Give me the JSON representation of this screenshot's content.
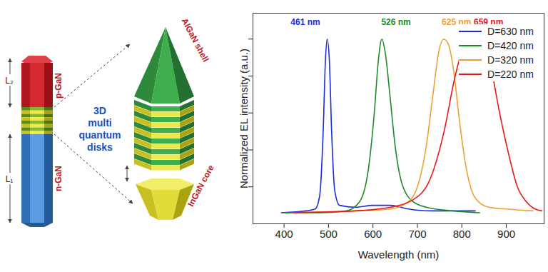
{
  "chart_data": {
    "type": "line",
    "x_label": "Wavelength (nm)",
    "y_label": "Normalized EL intensity (a.u.)",
    "xlim": [
      330,
      985
    ],
    "xticks": [
      400,
      500,
      600,
      700,
      800,
      900
    ],
    "ylim": [
      0,
      1.14
    ],
    "yticks": [
      0.2,
      0.4,
      0.6,
      0.8,
      1.0
    ],
    "tick_labels": "x",
    "legend": "top-right",
    "series": [
      {
        "name": "D=630 nm",
        "color": "#1a2be0",
        "x": [
          394,
          450,
          470,
          480,
          488,
          493,
          497,
          502,
          507,
          514,
          525,
          560,
          600,
          640,
          680,
          730,
          780,
          830
        ],
        "values": [
          0.06,
          0.07,
          0.08,
          0.15,
          0.5,
          0.88,
          1.0,
          0.88,
          0.5,
          0.18,
          0.1,
          0.09,
          0.1,
          0.1,
          0.08,
          0.07,
          0.07,
          0.07
        ]
      },
      {
        "name": "D=420 nm",
        "color": "#1e8a2a",
        "x": [
          400,
          480,
          540,
          570,
          590,
          603,
          612,
          620,
          628,
          638,
          650,
          665,
          690,
          720,
          780,
          840
        ],
        "values": [
          0.06,
          0.06,
          0.07,
          0.12,
          0.3,
          0.6,
          0.88,
          1.0,
          0.92,
          0.7,
          0.42,
          0.22,
          0.12,
          0.09,
          0.07,
          0.06
        ]
      },
      {
        "name": "D=320 nm",
        "color": "#f0a030",
        "x": [
          420,
          560,
          640,
          680,
          700,
          720,
          735,
          748,
          759,
          770,
          782,
          795,
          810,
          830,
          860,
          900,
          960
        ],
        "values": [
          0.06,
          0.07,
          0.08,
          0.12,
          0.2,
          0.42,
          0.7,
          0.93,
          1.0,
          0.97,
          0.82,
          0.55,
          0.3,
          0.14,
          0.09,
          0.08,
          0.07
        ]
      },
      {
        "name": "D=220 nm",
        "color": "#e8191c",
        "x": [
          420,
          560,
          640,
          690,
          730,
          760,
          785,
          805,
          828,
          848,
          865,
          885,
          905,
          925,
          945,
          965,
          980
        ],
        "values": [
          0.06,
          0.07,
          0.09,
          0.13,
          0.25,
          0.5,
          0.8,
          0.96,
          1.0,
          0.98,
          0.85,
          0.6,
          0.38,
          0.2,
          0.12,
          0.08,
          0.07
        ]
      }
    ],
    "annotations": [
      {
        "text": "461 nm",
        "x": 448,
        "y": 1.09,
        "color": "#1a2be0"
      },
      {
        "text": "526 nm",
        "x": 652,
        "y": 1.09,
        "color": "#1e8a2a"
      },
      {
        "text": "625 nm",
        "x": 788,
        "y": 1.09,
        "color": "#f0a030"
      },
      {
        "text": "659 nm",
        "x": 860,
        "y": 1.09,
        "color": "#e8191c"
      }
    ]
  },
  "diagram": {
    "p_layer": "p-GaN",
    "n_layer": "n-GaN",
    "top_length": "L₂",
    "bottom_length": "L₁",
    "disks_title": [
      "3D",
      "multi",
      "quantum",
      "disks"
    ],
    "shell": "AlGaN shell",
    "core": "InGaN core"
  }
}
